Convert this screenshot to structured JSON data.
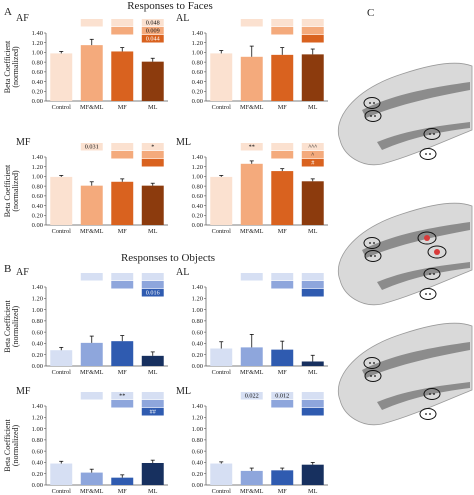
{
  "figure": {
    "panel_labels": [
      "A",
      "B",
      "C"
    ],
    "section_titles": [
      "Responses to Faces",
      "Responses to Objects"
    ]
  },
  "colors": {
    "faces": [
      "#fbe1d0",
      "#f4aa7c",
      "#d9621f",
      "#8c3b0d"
    ],
    "objects": [
      "#d6dff3",
      "#8ea6dc",
      "#2f5bb0",
      "#17305f"
    ],
    "brain_surface": "#d9d9d9",
    "brain_dark": "#8c8c8c",
    "roi_outline": "#111111",
    "roi_highlight": "#d93a3a"
  },
  "chart_data": [
    {
      "type": "bar",
      "group": "faces",
      "title": "AF",
      "ylabel": "Beta Coefficient (normalized)",
      "ylim": [
        0,
        1.4
      ],
      "yticks": [
        "0.00",
        "0.20",
        "0.40",
        "0.60",
        "0.80",
        "1.00",
        "1.20",
        "1.40"
      ],
      "categories": [
        "Control",
        "MF&ML",
        "MF",
        "ML"
      ],
      "values": [
        0.98,
        1.15,
        1.02,
        0.81
      ],
      "errors": [
        0.04,
        0.12,
        0.08,
        0.07
      ],
      "badges": [
        {
          "row": 0,
          "col": 1,
          "text": ""
        },
        {
          "row": 0,
          "col": 2,
          "text": ""
        },
        {
          "row": 0,
          "col": 3,
          "text": "0.048"
        },
        {
          "row": 1,
          "col": 2,
          "text": ""
        },
        {
          "row": 1,
          "col": 3,
          "text": "0.009"
        },
        {
          "row": 2,
          "col": 3,
          "text": "0.044"
        }
      ]
    },
    {
      "type": "bar",
      "group": "faces",
      "title": "AL",
      "ylabel": "",
      "ylim": [
        0,
        1.4
      ],
      "yticks": [
        "0.00",
        "0.20",
        "0.40",
        "0.60",
        "0.80",
        "1.00",
        "1.20",
        "1.40"
      ],
      "categories": [
        "Control",
        "MF&ML",
        "MF",
        "ML"
      ],
      "values": [
        0.98,
        0.91,
        0.95,
        0.96
      ],
      "errors": [
        0.06,
        0.22,
        0.15,
        0.11
      ],
      "badges": [
        {
          "row": 0,
          "col": 1,
          "text": ""
        },
        {
          "row": 0,
          "col": 2,
          "text": ""
        },
        {
          "row": 0,
          "col": 3,
          "text": ""
        },
        {
          "row": 1,
          "col": 2,
          "text": ""
        },
        {
          "row": 1,
          "col": 3,
          "text": ""
        },
        {
          "row": 2,
          "col": 3,
          "text": ""
        }
      ]
    },
    {
      "type": "bar",
      "group": "faces",
      "title": "MF",
      "ylabel": "Beta Coefficient (normalized)",
      "ylim": [
        0,
        1.4
      ],
      "yticks": [
        "0.00",
        "0.20",
        "0.40",
        "0.60",
        "0.80",
        "1.00",
        "1.20",
        "1.40"
      ],
      "categories": [
        "Control",
        "MF&ML",
        "MF",
        "ML"
      ],
      "values": [
        0.99,
        0.81,
        0.89,
        0.81
      ],
      "errors": [
        0.03,
        0.08,
        0.06,
        0.05
      ],
      "badges": [
        {
          "row": 0,
          "col": 1,
          "text": "0.031"
        },
        {
          "row": 0,
          "col": 2,
          "text": ""
        },
        {
          "row": 0,
          "col": 3,
          "text": "*"
        },
        {
          "row": 1,
          "col": 2,
          "text": ""
        },
        {
          "row": 1,
          "col": 3,
          "text": ""
        },
        {
          "row": 2,
          "col": 3,
          "text": ""
        }
      ]
    },
    {
      "type": "bar",
      "group": "faces",
      "title": "ML",
      "ylabel": "",
      "ylim": [
        0,
        1.4
      ],
      "yticks": [
        "0.00",
        "0.20",
        "0.40",
        "0.60",
        "0.80",
        "1.00",
        "1.20",
        "1.40"
      ],
      "categories": [
        "Control",
        "MF&ML",
        "MF",
        "ML"
      ],
      "values": [
        0.99,
        1.26,
        1.11,
        0.9
      ],
      "errors": [
        0.03,
        0.06,
        0.05,
        0.05
      ],
      "badges": [
        {
          "row": 0,
          "col": 1,
          "text": "**"
        },
        {
          "row": 0,
          "col": 2,
          "text": ""
        },
        {
          "row": 0,
          "col": 3,
          "text": "^^^"
        },
        {
          "row": 1,
          "col": 2,
          "text": ""
        },
        {
          "row": 1,
          "col": 3,
          "text": "^"
        },
        {
          "row": 2,
          "col": 3,
          "text": "#"
        }
      ]
    },
    {
      "type": "bar",
      "group": "objects",
      "title": "AF",
      "ylabel": "Beta Coefficient (normalized)",
      "ylim": [
        0,
        1.4
      ],
      "yticks": [
        "0.00",
        "0.20",
        "0.40",
        "0.60",
        "0.80",
        "1.00",
        "1.20",
        "1.40"
      ],
      "categories": [
        "Control",
        "MF&ML",
        "MF",
        "ML"
      ],
      "values": [
        0.28,
        0.41,
        0.44,
        0.18
      ],
      "errors": [
        0.05,
        0.12,
        0.1,
        0.07
      ],
      "badges": [
        {
          "row": 0,
          "col": 1,
          "text": ""
        },
        {
          "row": 0,
          "col": 2,
          "text": ""
        },
        {
          "row": 0,
          "col": 3,
          "text": ""
        },
        {
          "row": 1,
          "col": 2,
          "text": ""
        },
        {
          "row": 1,
          "col": 3,
          "text": ""
        },
        {
          "row": 2,
          "col": 3,
          "text": "0.016"
        }
      ]
    },
    {
      "type": "bar",
      "group": "objects",
      "title": "AL",
      "ylabel": "",
      "ylim": [
        0,
        1.4
      ],
      "yticks": [
        "0.00",
        "0.20",
        "0.40",
        "0.60",
        "0.80",
        "1.00",
        "1.20",
        "1.40"
      ],
      "categories": [
        "Control",
        "MF&ML",
        "MF",
        "ML"
      ],
      "values": [
        0.31,
        0.33,
        0.29,
        0.08
      ],
      "errors": [
        0.12,
        0.23,
        0.15,
        0.11
      ],
      "badges": [
        {
          "row": 0,
          "col": 1,
          "text": ""
        },
        {
          "row": 0,
          "col": 2,
          "text": ""
        },
        {
          "row": 0,
          "col": 3,
          "text": ""
        },
        {
          "row": 1,
          "col": 2,
          "text": ""
        },
        {
          "row": 1,
          "col": 3,
          "text": ""
        },
        {
          "row": 2,
          "col": 3,
          "text": ""
        }
      ]
    },
    {
      "type": "bar",
      "group": "objects",
      "title": "MF",
      "ylabel": "Beta Coefficient (normalized)",
      "ylim": [
        0,
        1.4
      ],
      "yticks": [
        "0.00",
        "0.20",
        "0.40",
        "0.60",
        "0.80",
        "1.00",
        "1.20",
        "1.40"
      ],
      "categories": [
        "Control",
        "MF&ML",
        "MF",
        "ML"
      ],
      "values": [
        0.38,
        0.22,
        0.13,
        0.39
      ],
      "errors": [
        0.04,
        0.06,
        0.05,
        0.05
      ],
      "badges": [
        {
          "row": 0,
          "col": 1,
          "text": ""
        },
        {
          "row": 0,
          "col": 2,
          "text": "**"
        },
        {
          "row": 0,
          "col": 3,
          "text": ""
        },
        {
          "row": 1,
          "col": 2,
          "text": ""
        },
        {
          "row": 1,
          "col": 3,
          "text": ""
        },
        {
          "row": 2,
          "col": 3,
          "text": "##"
        }
      ]
    },
    {
      "type": "bar",
      "group": "objects",
      "title": "ML",
      "ylabel": "",
      "ylim": [
        0,
        1.4
      ],
      "yticks": [
        "0.00",
        "0.20",
        "0.40",
        "0.60",
        "0.80",
        "1.00",
        "1.20",
        "1.40"
      ],
      "categories": [
        "Control",
        "MF&ML",
        "MF",
        "ML"
      ],
      "values": [
        0.38,
        0.25,
        0.26,
        0.36
      ],
      "errors": [
        0.03,
        0.05,
        0.04,
        0.04
      ],
      "badges": [
        {
          "row": 0,
          "col": 1,
          "text": "0.022"
        },
        {
          "row": 0,
          "col": 2,
          "text": "0.012"
        },
        {
          "row": 0,
          "col": 3,
          "text": ""
        },
        {
          "row": 1,
          "col": 2,
          "text": ""
        },
        {
          "row": 1,
          "col": 3,
          "text": ""
        },
        {
          "row": 2,
          "col": 3,
          "text": ""
        }
      ]
    }
  ]
}
